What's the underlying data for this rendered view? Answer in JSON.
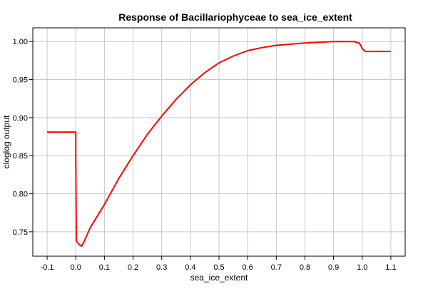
{
  "chart_data": {
    "type": "line",
    "title": "Response of Bacillariophyceae to sea_ice_extent",
    "xlabel": "sea_ice_extent",
    "ylabel": "cloglog output",
    "xlim": [
      -0.15,
      1.15
    ],
    "ylim": [
      0.718,
      1.018
    ],
    "xticks": [
      -0.1,
      0.0,
      0.1,
      0.2,
      0.3,
      0.4,
      0.5,
      0.6,
      0.7,
      0.8,
      0.9,
      1.0,
      1.1
    ],
    "xtick_labels": [
      "-0.1",
      "0.0",
      "0.1",
      "0.2",
      "0.3",
      "0.4",
      "0.5",
      "0.6",
      "0.7",
      "0.8",
      "0.9",
      "1.0",
      "1.1"
    ],
    "yticks": [
      0.75,
      0.8,
      0.85,
      0.9,
      0.95,
      1.0
    ],
    "ytick_labels": [
      "0.75",
      "0.80",
      "0.85",
      "0.90",
      "0.95",
      "1.00"
    ],
    "grid": true,
    "legend": "none",
    "line_color": "#ff0000",
    "series": [
      {
        "x": [
          -0.1,
          0.0,
          0.0,
          0.002,
          0.01,
          0.02,
          0.03,
          0.05,
          0.1,
          0.15,
          0.2,
          0.25,
          0.3,
          0.35,
          0.4,
          0.45,
          0.5,
          0.55,
          0.6,
          0.65,
          0.7,
          0.8,
          0.9,
          0.97,
          0.99,
          1.0,
          1.01,
          1.1
        ],
        "y": [
          0.881,
          0.881,
          0.86,
          0.738,
          0.734,
          0.731,
          0.738,
          0.755,
          0.786,
          0.82,
          0.85,
          0.878,
          0.902,
          0.924,
          0.943,
          0.959,
          0.972,
          0.981,
          0.988,
          0.992,
          0.995,
          0.998,
          1.0,
          1.0,
          0.998,
          0.991,
          0.987,
          0.987
        ]
      }
    ]
  }
}
